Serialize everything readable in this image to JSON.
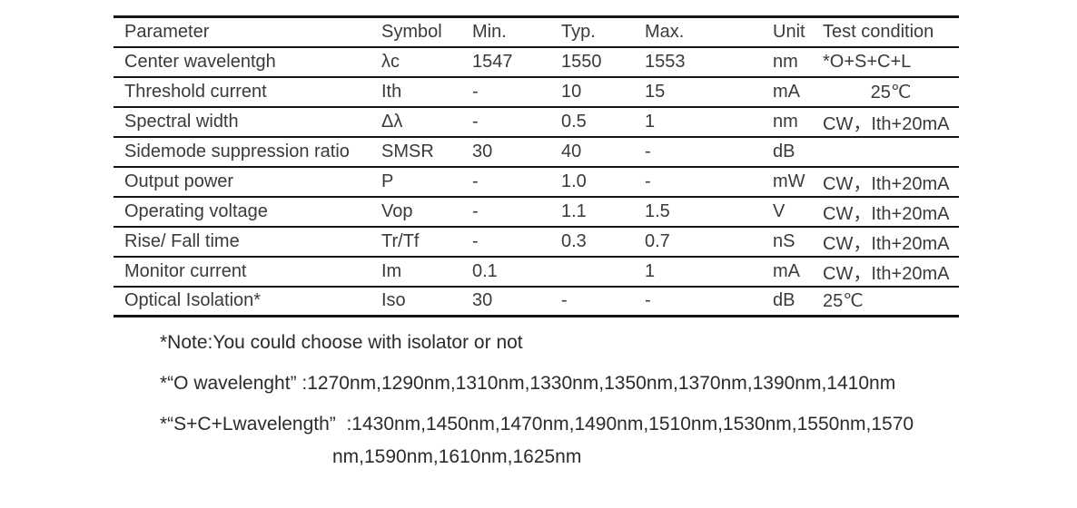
{
  "table": {
    "columns": [
      "Parameter",
      "Symbol",
      "Min.",
      "Typ.",
      "Max.",
      "Unit",
      "Test condition"
    ],
    "rows": [
      {
        "cells": [
          "Center wavelentgh",
          "λc",
          "1547",
          "1550",
          "1553",
          "nm",
          "*O+S+C+L"
        ]
      },
      {
        "cells": [
          "Threshold current",
          "Ith",
          "-",
          "10",
          "15",
          "mA",
          "25℃"
        ],
        "centered_test_condition": true
      },
      {
        "cells": [
          "Spectral width",
          "Δλ",
          "-",
          "0.5",
          "1",
          "nm",
          "CW，Ith+20mA"
        ]
      },
      {
        "cells": [
          "Sidemode suppression ratio",
          "SMSR",
          "30",
          "40",
          "-",
          "dB",
          ""
        ]
      },
      {
        "cells": [
          "Output power",
          "P",
          "-",
          "1.0",
          "-",
          "mW",
          "CW，Ith+20mA"
        ]
      },
      {
        "cells": [
          "Operating voltage",
          "Vop",
          "-",
          "1.1",
          "1.5",
          "V",
          "CW，Ith+20mA"
        ]
      },
      {
        "cells": [
          "Rise/ Fall time",
          "Tr/Tf",
          "-",
          "0.3",
          "0.7",
          "nS",
          "CW，Ith+20mA"
        ]
      },
      {
        "cells": [
          "Monitor current",
          "Im",
          "0.1",
          "",
          "1",
          "mA",
          "CW，Ith+20mA"
        ]
      },
      {
        "cells": [
          "Optical Isolation*",
          "Iso",
          "30",
          "-",
          "-",
          "dB",
          "25℃"
        ]
      }
    ]
  },
  "notes": {
    "note_isolator": "*Note:You could choose with isolator or not",
    "note_o_wavelength": "*“O wavelenght” :1270nm,1290nm,1310nm,1330nm,1350nm,1370nm,1390nm,1410nm",
    "note_scl_wavelength_line1": "*“S+C+Lwavelength”  :1430nm,1450nm,1470nm,1490nm,1510nm,1530nm,1550nm,1570",
    "note_scl_wavelength_line2": "nm,1590nm,1610nm,1625nm"
  },
  "colors": {
    "background": "#ffffff",
    "text": "#3a3a3a",
    "rule_line": "#161616"
  }
}
